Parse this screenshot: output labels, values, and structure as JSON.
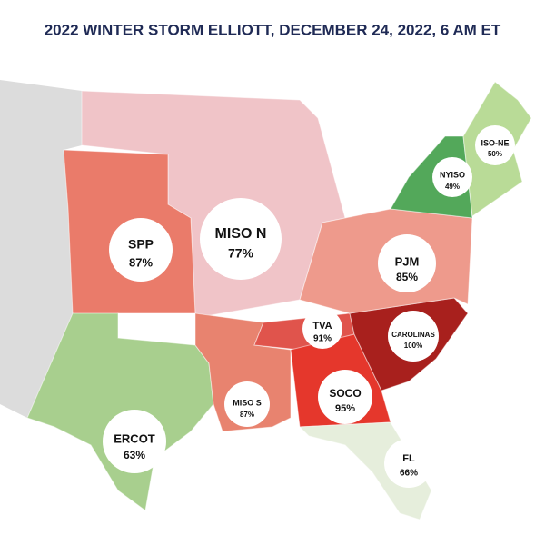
{
  "title": "2022 WINTER STORM ELLIOTT, DECEMBER 24, 2022, 6 AM ET",
  "regions": [
    {
      "name": "SPP",
      "label": "87%",
      "color": "#ea7b6a"
    },
    {
      "name": "MISO N",
      "label": "77%",
      "color": "#f0c4c8"
    },
    {
      "name": "PJM",
      "label": "85%",
      "color": "#ee9a8c"
    },
    {
      "name": "NYISO",
      "label": "49%",
      "color": "#53a85a"
    },
    {
      "name": "ISO-NE",
      "label": "50%",
      "color": "#b9db97"
    },
    {
      "name": "TVA",
      "label": "91%",
      "color": "#e0544c"
    },
    {
      "name": "CAROLINAS",
      "label": "100%",
      "color": "#a8201d"
    },
    {
      "name": "MISO S",
      "label": "87%",
      "color": "#e8836f"
    },
    {
      "name": "SOCO",
      "label": "95%",
      "color": "#e5372c"
    },
    {
      "name": "ERCOT",
      "label": "63%",
      "color": "#a8cf8e"
    },
    {
      "name": "FL",
      "label": "66%",
      "color": "#e6eedc"
    }
  ]
}
